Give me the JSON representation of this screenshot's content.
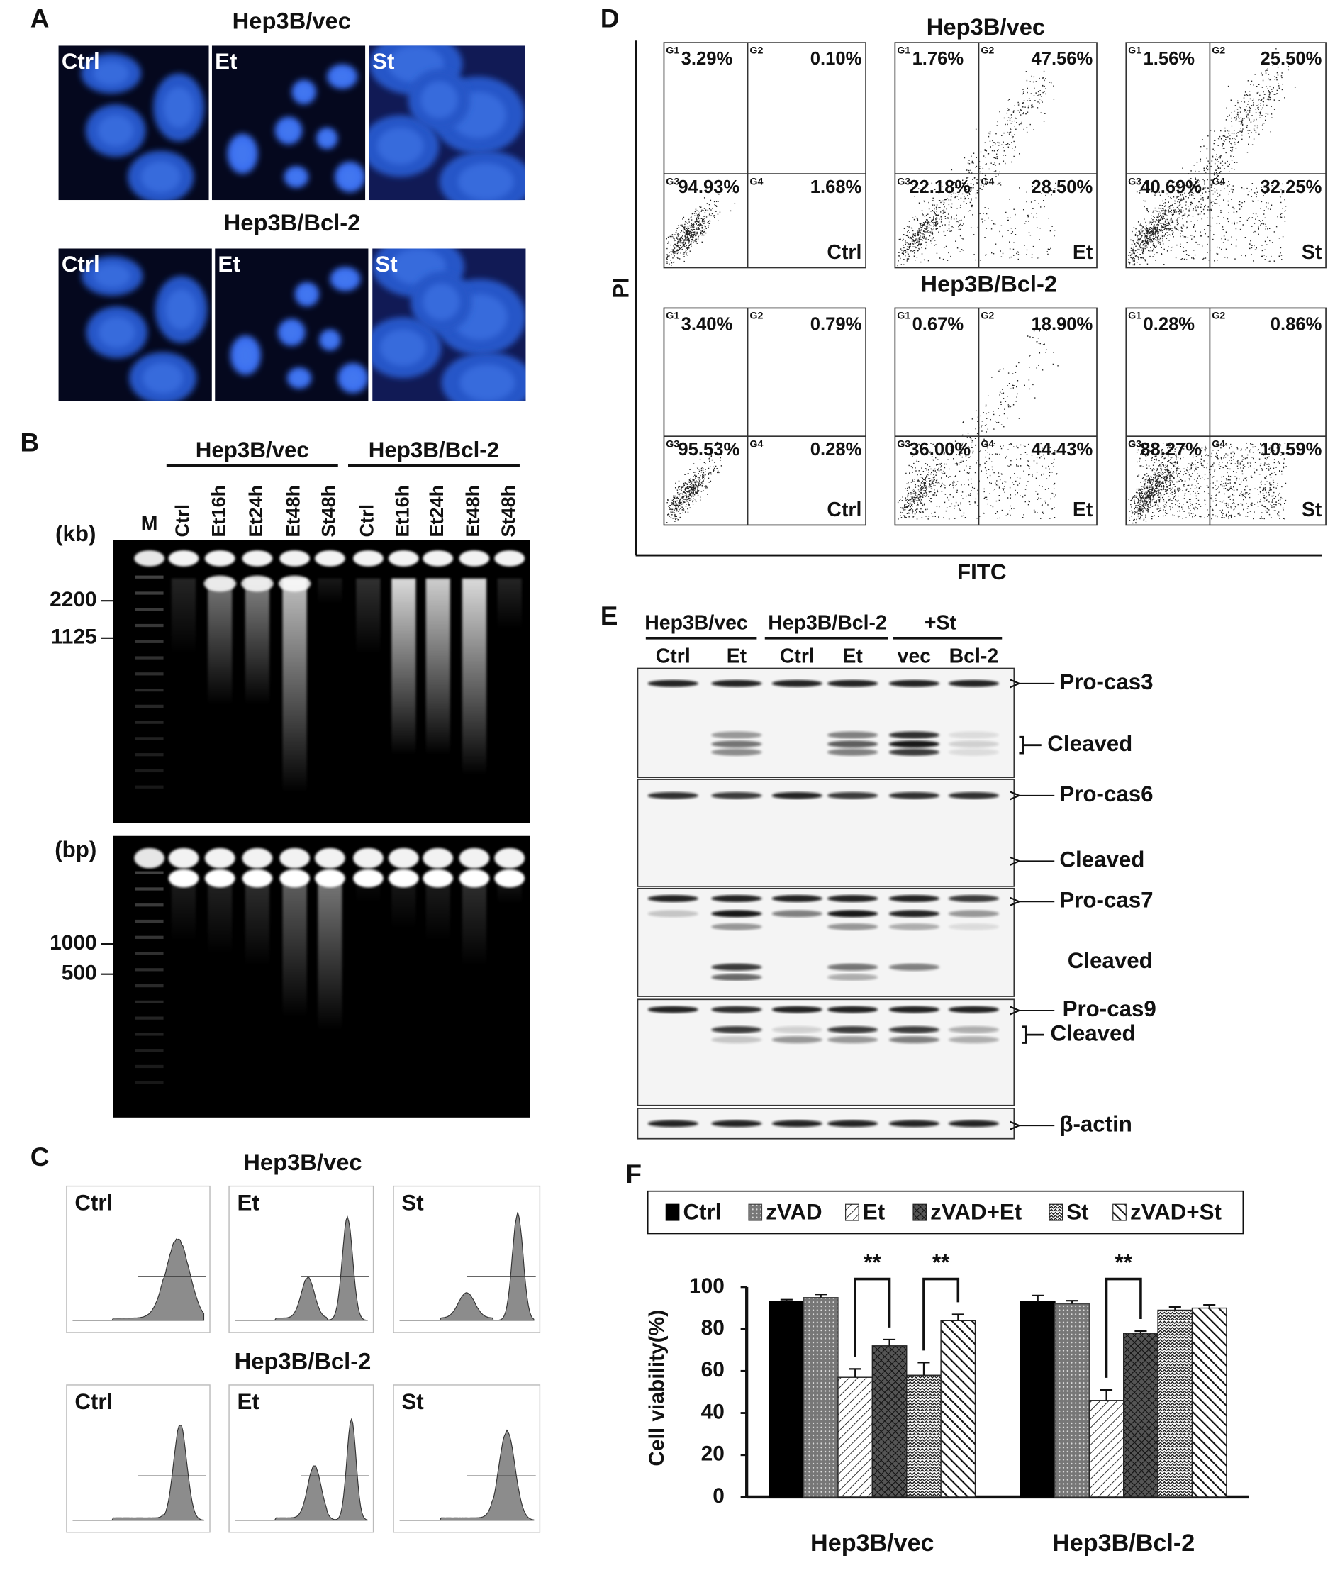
{
  "panel_a": {
    "label": "A",
    "groups": [
      {
        "title": "Hep3B/vec",
        "images": [
          "Ctrl",
          "Et",
          "St"
        ]
      },
      {
        "title": "Hep3B/Bcl-2",
        "images": [
          "Ctrl",
          "Et",
          "St"
        ]
      }
    ]
  },
  "panel_b": {
    "label": "B",
    "groups": [
      "Hep3B/vec",
      "Hep3B/Bcl-2"
    ],
    "lanes": [
      "M",
      "Ctrl",
      "Et16h",
      "Et24h",
      "Et48h",
      "St48h",
      "Ctrl",
      "Et16h",
      "Et24h",
      "Et48h",
      "St48h"
    ],
    "gels": [
      {
        "unit": "(kb)",
        "markers": [
          "2200",
          "1125"
        ]
      },
      {
        "unit": "(bp)",
        "markers": [
          "1000",
          "500"
        ]
      }
    ]
  },
  "panel_c": {
    "label": "C",
    "groups": [
      {
        "title": "Hep3B/vec",
        "plots": [
          "Ctrl",
          "Et",
          "St"
        ]
      },
      {
        "title": "Hep3B/Bcl-2",
        "plots": [
          "Ctrl",
          "Et",
          "St"
        ]
      }
    ]
  },
  "panel_d": {
    "label": "D",
    "y_label": "PI",
    "x_label": "FITC",
    "gates": [
      "G1",
      "G2",
      "G3",
      "G4"
    ],
    "groups": [
      {
        "title": "Hep3B/vec",
        "plots": [
          {
            "name": "Ctrl",
            "quadrants": [
              "3.29%",
              "0.10%",
              "94.93%",
              "1.68%"
            ]
          },
          {
            "name": "Et",
            "quadrants": [
              "1.76%",
              "47.56%",
              "22.18%",
              "28.50%"
            ]
          },
          {
            "name": "St",
            "quadrants": [
              "1.56%",
              "25.50%",
              "40.69%",
              "32.25%"
            ]
          }
        ]
      },
      {
        "title": "Hep3B/Bcl-2",
        "plots": [
          {
            "name": "Ctrl",
            "quadrants": [
              "3.40%",
              "0.79%",
              "95.53%",
              "0.28%"
            ]
          },
          {
            "name": "Et",
            "quadrants": [
              "0.67%",
              "18.90%",
              "36.00%",
              "44.43%"
            ]
          },
          {
            "name": "St",
            "quadrants": [
              "0.28%",
              "0.86%",
              "88.27%",
              "10.59%"
            ]
          }
        ]
      }
    ]
  },
  "panel_e": {
    "label": "E",
    "groups": [
      "Hep3B/vec",
      "Hep3B/Bcl-2",
      "+St"
    ],
    "lanes": [
      "Ctrl",
      "Et",
      "Ctrl",
      "Et",
      "vec",
      "Bcl-2"
    ],
    "blots": [
      {
        "labels": [
          "Pro-cas3",
          "Cleaved"
        ]
      },
      {
        "labels": [
          "Pro-cas6",
          "Cleaved"
        ]
      },
      {
        "labels": [
          "Pro-cas7",
          "Cleaved"
        ]
      },
      {
        "labels": [
          "Pro-cas9",
          "Cleaved"
        ]
      },
      {
        "labels": [
          "β-actin"
        ]
      }
    ]
  },
  "chart_data": {
    "type": "bar",
    "label": "F",
    "y_label": "Cell viability(%)",
    "categories": [
      "Hep3B/vec",
      "Hep3B/Bcl-2"
    ],
    "series": [
      {
        "name": "Ctrl",
        "color": "#000000",
        "pattern": "solid",
        "values": [
          93,
          93
        ],
        "errors": [
          1,
          3
        ]
      },
      {
        "name": "zVAD",
        "color": "#444444",
        "pattern": "dots",
        "values": [
          95,
          92
        ],
        "errors": [
          1.5,
          1.5
        ]
      },
      {
        "name": "Et",
        "color": "#222222",
        "pattern": "hatch",
        "values": [
          57,
          46
        ],
        "errors": [
          4,
          5
        ]
      },
      {
        "name": "zVAD+Et",
        "color": "#222222",
        "pattern": "cross",
        "values": [
          72,
          78
        ],
        "errors": [
          3,
          1
        ]
      },
      {
        "name": "St",
        "color": "#222222",
        "pattern": "wave",
        "values": [
          58,
          89
        ],
        "errors": [
          6,
          1.5
        ]
      },
      {
        "name": "zVAD+St",
        "color": "#222222",
        "pattern": "stripes",
        "values": [
          84,
          90
        ],
        "errors": [
          3,
          1.5
        ]
      }
    ],
    "ylim": [
      0,
      100
    ],
    "yticks": [
      0,
      20,
      40,
      60,
      80,
      100
    ],
    "annotations": [
      "**",
      "**",
      "**"
    ],
    "legend": "top"
  }
}
